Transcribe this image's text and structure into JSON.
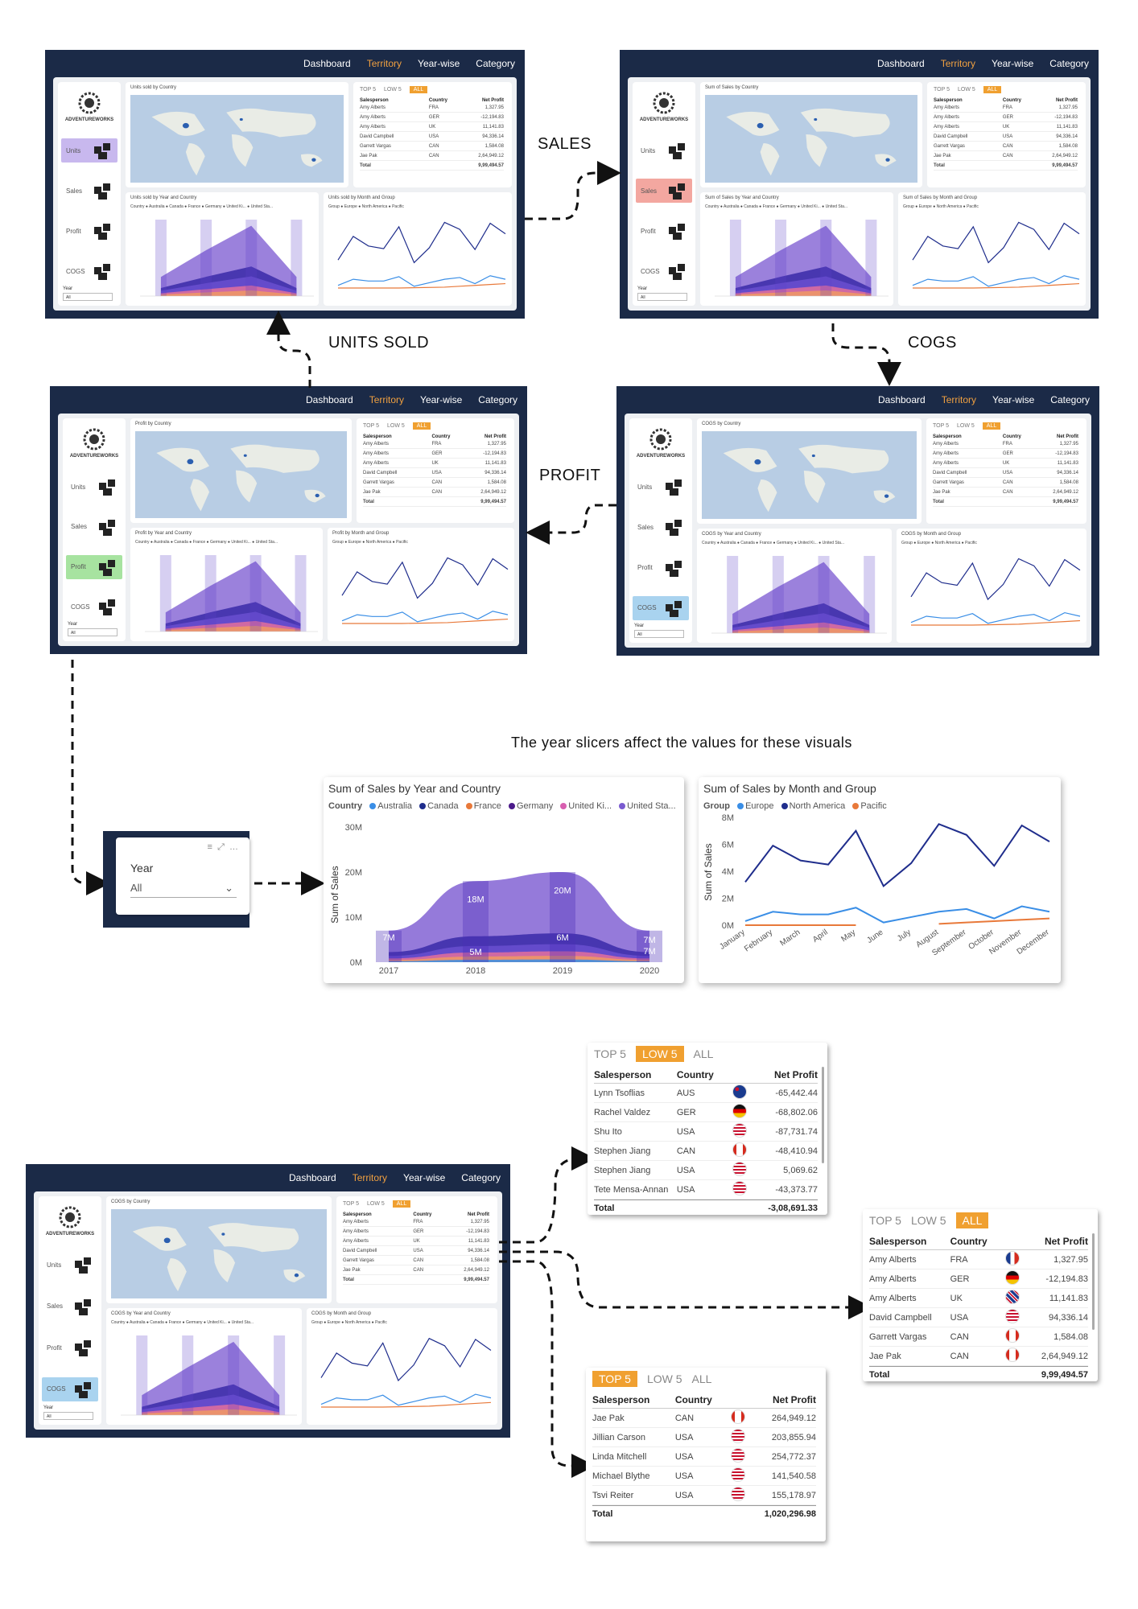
{
  "nav": [
    "Dashboard",
    "Territory",
    "Year-wise",
    "Category"
  ],
  "labels": {
    "sales": "SALES",
    "cogs": "COGS",
    "profit": "PROFIT",
    "units": "UNITS SOLD",
    "note": "The year slicers affect the values for these visuals"
  },
  "sidebar": {
    "logo": "ADVENTUREWORKS",
    "items": [
      "Units",
      "Sales",
      "Profit",
      "COGS"
    ],
    "year_label": "Year",
    "year_value": "All"
  },
  "panels": {
    "units": {
      "map": "Units sold by Country",
      "year": "Units sold by Year and Country",
      "month": "Units sold by Month and Group"
    },
    "sales": {
      "map": "Sum of Sales by Country",
      "year": "Sum of Sales by Year and Country",
      "month": "Sum of Sales by Month and Group"
    },
    "profit": {
      "map": "Profit by Country",
      "year": "Profit by Year and Country",
      "month": "Profit by Month and Group"
    },
    "cogs": {
      "map": "COGS by Country",
      "year": "COGS by Year and Country",
      "month": "COGS by Month and Group"
    }
  },
  "legends": {
    "country": "Country  ● Australia ● Canada ● France ● Germany ● United Ki... ● United Sta...",
    "group": "Group  ● Europe ● North America ● Pacific"
  },
  "tabs": {
    "top": "TOP 5",
    "low": "LOW 5",
    "all": "ALL"
  },
  "cols": {
    "sp": "Salesperson",
    "country": "Country",
    "np": "Net Profit"
  },
  "all_rows": [
    [
      "Amy Alberts",
      "FRA",
      "1,327.95"
    ],
    [
      "Amy Alberts",
      "GER",
      "-12,194.83"
    ],
    [
      "Amy Alberts",
      "UK",
      "11,141.83"
    ],
    [
      "David Campbell",
      "USA",
      "94,336.14"
    ],
    [
      "Garrett Vargas",
      "CAN",
      "1,584.08"
    ],
    [
      "Jae Pak",
      "CAN",
      "2,64,949.12"
    ]
  ],
  "all_total": "9,99,494.57",
  "low_rows": [
    [
      "Lynn Tsoflias",
      "AUS",
      "-65,442.44"
    ],
    [
      "Rachel Valdez",
      "GER",
      "-68,802.06"
    ],
    [
      "Shu Ito",
      "USA",
      "-87,731.74"
    ],
    [
      "Stephen Jiang",
      "CAN",
      "-48,410.94"
    ],
    [
      "Stephen Jiang",
      "USA",
      "5,069.62"
    ],
    [
      "Tete Mensa-Annan",
      "USA",
      "-43,373.77"
    ]
  ],
  "low_total": "-3,08,691.33",
  "top_rows": [
    [
      "Jae Pak",
      "CAN",
      "264,949.12"
    ],
    [
      "Jillian Carson",
      "USA",
      "203,855.94"
    ],
    [
      "Linda Mitchell",
      "USA",
      "254,772.37"
    ],
    [
      "Michael Blythe",
      "USA",
      "141,540.58"
    ],
    [
      "Tsvi Reiter",
      "USA",
      "155,178.97"
    ]
  ],
  "top_total": "1,020,296.98",
  "total_label": "Total",
  "slicer": {
    "label": "Year",
    "value": "All"
  },
  "chart_data": [
    {
      "type": "area",
      "title": "Sum of Sales by Year and Country",
      "legend_title": "Country",
      "series_names": [
        "Australia",
        "Canada",
        "France",
        "Germany",
        "United Ki...",
        "United Sta..."
      ],
      "categories": [
        "2017",
        "2018",
        "2019",
        "2020"
      ],
      "series": [
        {
          "name": "Australia",
          "values": [
            1.8,
            5,
            6,
            1.7
          ]
        }
      ],
      "data_labels": [
        "7M",
        "18M",
        "20M",
        "7M",
        "5M",
        "6M",
        "7M"
      ],
      "ylabel": "Sum of Sales",
      "yticks": [
        "0M",
        "10M",
        "20M",
        "30M"
      ],
      "totals": [
        7,
        18,
        20,
        7
      ]
    },
    {
      "type": "line",
      "title": "Sum of Sales by Month and Group",
      "legend_title": "Group",
      "ylabel": "Sum of Sales",
      "yticks": [
        "0M",
        "2M",
        "4M",
        "6M",
        "8M"
      ],
      "categories": [
        "January",
        "February",
        "March",
        "April",
        "May",
        "June",
        "July",
        "August",
        "September",
        "October",
        "November",
        "December"
      ],
      "series": [
        {
          "name": "North America",
          "values": [
            3.2,
            5.9,
            4.8,
            4.5,
            7.0,
            2.9,
            4.6,
            7.5,
            6.7,
            4.4,
            7.4,
            6.2
          ]
        },
        {
          "name": "Europe",
          "values": [
            0.3,
            1.0,
            0.8,
            0.8,
            1.3,
            0.2,
            0.6,
            1.0,
            1.2,
            0.5,
            1.4,
            1.0
          ]
        },
        {
          "name": "Pacific",
          "values": [
            0.0,
            0.0,
            0.0,
            0.0,
            0.0,
            null,
            null,
            0.1,
            0.2,
            0.3,
            0.4,
            0.5
          ]
        }
      ],
      "colors": {
        "North America": "#1f2d8c",
        "Europe": "#3a8ee6",
        "Pacific": "#e8793a"
      }
    }
  ]
}
